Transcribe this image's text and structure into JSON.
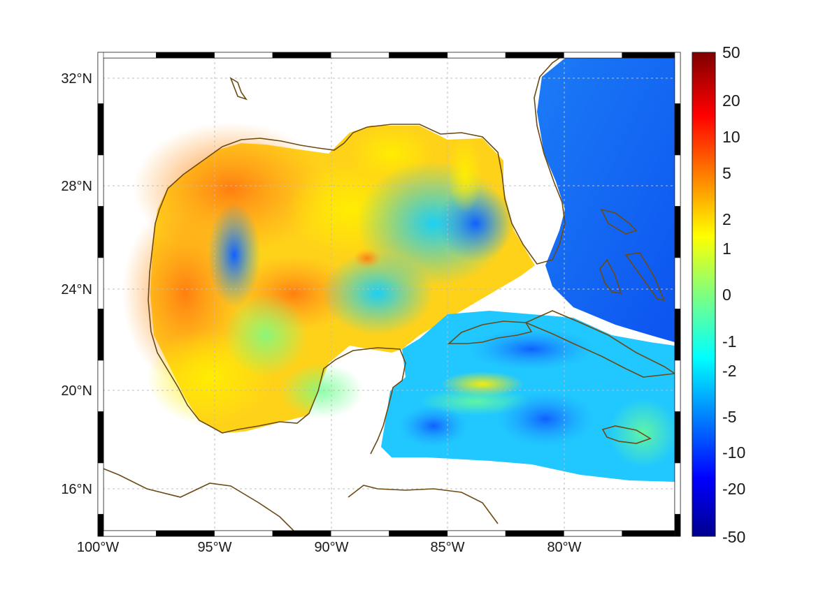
{
  "map": {
    "lon_ticks": [
      "100°W",
      "95°W",
      "90°W",
      "85°W",
      "80°W"
    ],
    "lat_ticks": [
      "32°N",
      "28°N",
      "24°N",
      "20°N",
      "16°N"
    ],
    "lon_range": [
      -100,
      -75
    ],
    "lat_range": [
      14.2,
      33
    ],
    "grid": true,
    "frame_style": "black-white dashed border"
  },
  "colorbar": {
    "labels": [
      "50",
      "20",
      "10",
      "5",
      "2",
      "1",
      "0",
      "-1",
      "-2",
      "-5",
      "-10",
      "-20",
      "-50"
    ],
    "colormap": "jet",
    "placement": "right"
  },
  "colors": {
    "land": "#ffffff",
    "coastline": "#6b4a14",
    "grid": "#bdbdbd"
  }
}
